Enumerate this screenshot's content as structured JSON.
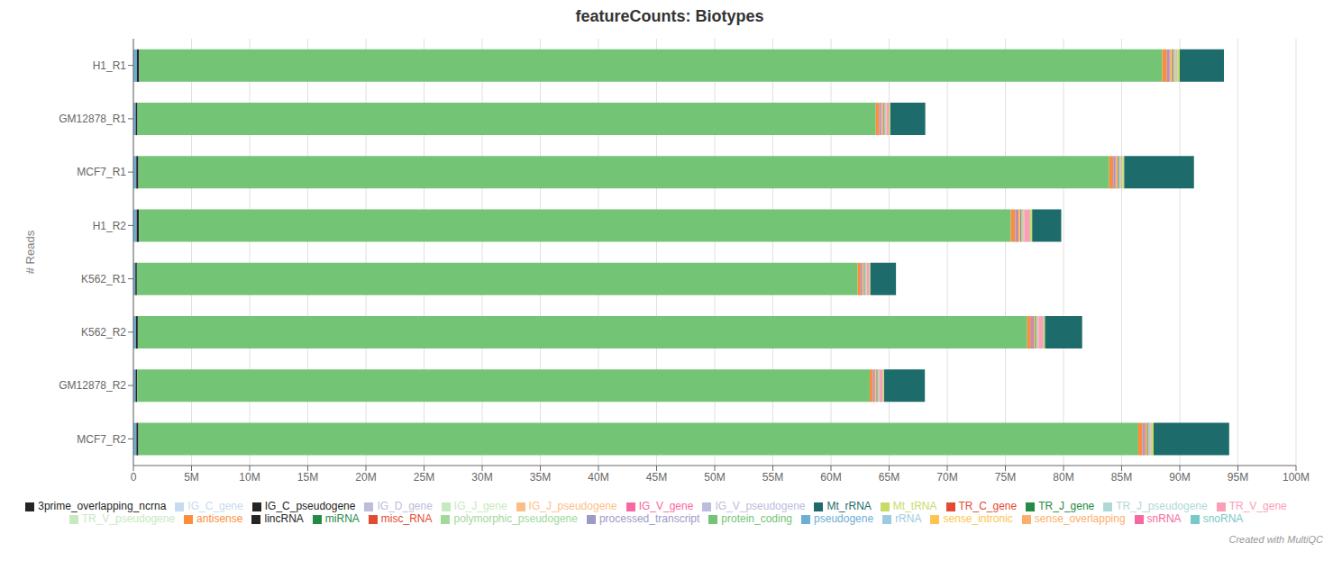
{
  "chart_data": {
    "type": "bar",
    "title": "featureCounts: Biotypes",
    "ylabel": "# Reads",
    "annotation": "Created with MultiQC",
    "orientation": "horizontal",
    "stacked": true,
    "grid": true,
    "legend": "bottom",
    "categories": [
      "H1_R1",
      "GM12878_R1",
      "MCF7_R1",
      "H1_R2",
      "K562_R1",
      "K562_R2",
      "GM12878_R2",
      "MCF7_R2"
    ],
    "xlim": [
      0,
      100000000
    ],
    "xticks": [
      0,
      {
        "value": 5000000,
        "label": "5M"
      },
      {
        "value": 10000000,
        "label": "10M"
      },
      {
        "value": 15000000,
        "label": "15M"
      },
      {
        "value": 20000000,
        "label": "20M"
      },
      {
        "value": 25000000,
        "label": "25M"
      },
      {
        "value": 30000000,
        "label": "30M"
      },
      {
        "value": 35000000,
        "label": "35M"
      },
      {
        "value": 40000000,
        "label": "40M"
      },
      {
        "value": 45000000,
        "label": "45M"
      },
      {
        "value": 50000000,
        "label": "50M"
      },
      {
        "value": 55000000,
        "label": "55M"
      },
      {
        "value": 60000000,
        "label": "60M"
      },
      {
        "value": 65000000,
        "label": "65M"
      },
      {
        "value": 70000000,
        "label": "70M"
      },
      {
        "value": 75000000,
        "label": "75M"
      },
      {
        "value": 80000000,
        "label": "80M"
      },
      {
        "value": 85000000,
        "label": "85M"
      },
      {
        "value": 90000000,
        "label": "90M"
      },
      {
        "value": 95000000,
        "label": "95M"
      },
      {
        "value": 100000000,
        "label": "100M"
      }
    ],
    "series": [
      {
        "name": "pseudogene",
        "color": "#6baed6",
        "values": [
          300000,
          200000,
          250000,
          280000,
          170000,
          220000,
          190000,
          260000
        ]
      },
      {
        "name": "lincRNA",
        "color": "#252525",
        "values": [
          200000,
          150000,
          180000,
          190000,
          130000,
          160000,
          140000,
          170000
        ]
      },
      {
        "name": "protein_coding",
        "color": "#74c476",
        "values": [
          88000000,
          63500000,
          83500000,
          75000000,
          62000000,
          76500000,
          63000000,
          86000000
        ]
      },
      {
        "name": "antisense",
        "color": "#fd8d3c",
        "values": [
          400000,
          300000,
          350000,
          380000,
          250000,
          320000,
          280000,
          360000
        ]
      },
      {
        "name": "processed_transcript",
        "color": "#9e9ac8",
        "values": [
          200000,
          150000,
          180000,
          190000,
          130000,
          160000,
          140000,
          170000
        ]
      },
      {
        "name": "snRNA",
        "color": "#f768a1",
        "values": [
          100000,
          80000,
          90000,
          95000,
          70000,
          85000,
          75000,
          88000
        ]
      },
      {
        "name": "sense_intronic",
        "color": "#fec44f",
        "values": [
          150000,
          100000,
          120000,
          140000,
          90000,
          110000,
          95000,
          130000
        ]
      },
      {
        "name": "miRNA",
        "color": "#238b45",
        "values": [
          50000,
          40000,
          45000,
          48000,
          35000,
          42000,
          38000,
          46000
        ]
      },
      {
        "name": "misc_RNA",
        "color": "#e34a33",
        "values": [
          50000,
          40000,
          45000,
          48000,
          35000,
          42000,
          38000,
          46000
        ]
      },
      {
        "name": "snoRNA",
        "color": "#78c8c8",
        "values": [
          50000,
          40000,
          45000,
          48000,
          35000,
          42000,
          38000,
          46000
        ]
      },
      {
        "name": "rRNA",
        "color": "#9ecae1",
        "values": [
          50000,
          40000,
          45000,
          48000,
          35000,
          42000,
          38000,
          46000
        ]
      },
      {
        "name": "3prime_overlapping_ncrna",
        "color": "#252525",
        "values": [
          10000,
          8000,
          9000,
          9500,
          7000,
          8500,
          7500,
          9200
        ]
      },
      {
        "name": "polymorphic_pseudogene",
        "color": "#a1d99b",
        "values": [
          80000,
          60000,
          70000,
          75000,
          55000,
          65000,
          58000,
          72000
        ]
      },
      {
        "name": "sense_overlapping",
        "color": "#fdae6b",
        "values": [
          50000,
          40000,
          45000,
          48000,
          35000,
          42000,
          38000,
          46000
        ]
      },
      {
        "name": "IG_V_pseudogene",
        "color": "#bcbddc",
        "values": [
          20000,
          15000,
          18000,
          19000,
          12000,
          16000,
          14000,
          17000
        ]
      },
      {
        "name": "TR_V_gene",
        "color": "#fa9fb5",
        "values": [
          30000,
          200000,
          25000,
          450000,
          180000,
          380000,
          250000,
          28000
        ]
      },
      {
        "name": "TR_V_pseudogene",
        "color": "#c7e9c0",
        "values": [
          10000,
          8000,
          9000,
          9500,
          7000,
          8500,
          7500,
          9200
        ]
      },
      {
        "name": "TR_J_gene",
        "color": "#238b45",
        "values": [
          10000,
          8000,
          9000,
          9500,
          7000,
          8500,
          7500,
          9200
        ]
      },
      {
        "name": "TR_C_gene",
        "color": "#e34a33",
        "values": [
          5000,
          4000,
          4500,
          4800,
          3500,
          4200,
          3800,
          4600
        ]
      },
      {
        "name": "TR_J_pseudogene",
        "color": "#b0d8d8",
        "values": [
          5000,
          4000,
          4500,
          4800,
          3500,
          4200,
          3800,
          4600
        ]
      },
      {
        "name": "IG_C_gene",
        "color": "#c6dbef",
        "values": [
          5000,
          4000,
          4500,
          4800,
          3500,
          4200,
          3800,
          4600
        ]
      },
      {
        "name": "IG_C_pseudogene",
        "color": "#252525",
        "values": [
          5000,
          4000,
          4500,
          4800,
          3500,
          4200,
          3800,
          4600
        ]
      },
      {
        "name": "IG_J_gene",
        "color": "#c7e9c0",
        "values": [
          5000,
          4000,
          4500,
          4800,
          3500,
          4200,
          3800,
          4600
        ]
      },
      {
        "name": "IG_J_pseudogene",
        "color": "#fdbe85",
        "values": [
          5000,
          4000,
          4500,
          4800,
          3500,
          4200,
          3800,
          4600
        ]
      },
      {
        "name": "IG_D_gene",
        "color": "#bcbddc",
        "values": [
          5000,
          4000,
          4500,
          4800,
          3500,
          4200,
          3800,
          4600
        ]
      },
      {
        "name": "IG_V_gene",
        "color": "#f768a1",
        "values": [
          5000,
          4000,
          4500,
          4800,
          3500,
          4200,
          3800,
          4600
        ]
      },
      {
        "name": "Mt_tRNA",
        "color": "#c7dc68",
        "values": [
          200000,
          100000,
          150000,
          180000,
          80000,
          120000,
          90000,
          160000
        ]
      },
      {
        "name": "Mt_rRNA",
        "color": "#1d6b6b",
        "values": [
          3800000,
          3000000,
          6000000,
          2500000,
          2200000,
          3200000,
          3500000,
          6500000
        ]
      }
    ]
  }
}
